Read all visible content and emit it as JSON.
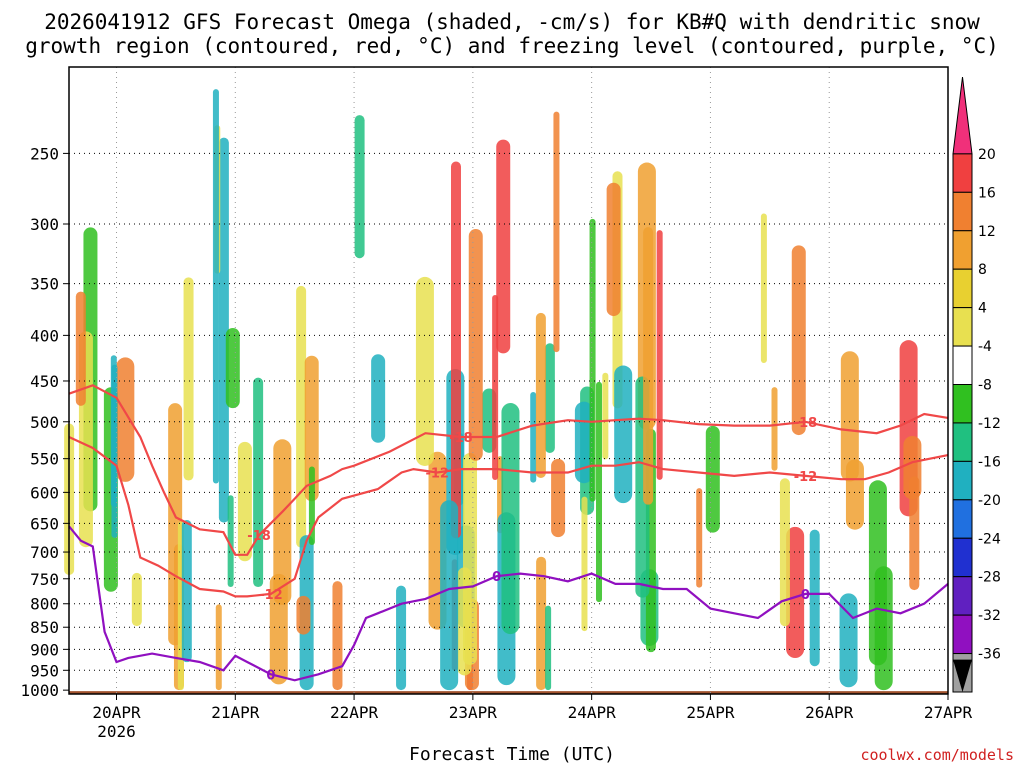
{
  "header": {
    "title_line1": "2026041912 GFS Forecast Omega (shaded, -cm/s) for KB#Q with dendritic snow",
    "title_line2": "growth region (contoured, red, °C) and freezing level (contoured, purple, °C)"
  },
  "footer": {
    "xlabel": "Forecast Time (UTC)",
    "credit": "coolwx.com/models"
  },
  "chart_data": {
    "type": "heatmap",
    "title": "2026041912 GFS Forecast Omega (shaded, -cm/s) for KB#Q with dendritic snow growth region (contoured, red, °C) and freezing level (contoured, purple, °C)",
    "xlabel": "Forecast Time (UTC)",
    "ylabel": "",
    "x_ticks": [
      "20APR",
      "21APR",
      "22APR",
      "23APR",
      "24APR",
      "25APR",
      "26APR",
      "27APR"
    ],
    "x_tick_sublabel": "2026",
    "y_ticks": [
      250,
      300,
      350,
      400,
      450,
      500,
      550,
      600,
      650,
      700,
      750,
      800,
      850,
      900,
      950,
      1000
    ],
    "y_range": [
      200,
      1010
    ],
    "y_scale": "log",
    "x_range_days": [
      -0.4,
      7.0
    ],
    "grid": true,
    "colorbar_labels": [
      20,
      16,
      12,
      8,
      4,
      -4,
      -8,
      -12,
      -16,
      -20,
      -24,
      -28,
      -32,
      -36
    ],
    "colorbar_colors": [
      "#f0307a",
      "#f04040",
      "#f08030",
      "#f0a030",
      "#e8d030",
      "#e8e050",
      "#ffffff",
      "#30c020",
      "#20c080",
      "#20b0c0",
      "#2070e0",
      "#2030d0",
      "#6020c0",
      "#9010c0",
      "#a0a0a0"
    ],
    "contour_labels": {
      "dgz_warm": "-12",
      "dgz_cold": "-18",
      "freezing": "0"
    },
    "series": [
      {
        "name": "-18",
        "x": [
          -0.4,
          -0.2,
          0.0,
          0.2,
          0.3,
          0.4,
          0.5,
          0.7,
          0.9,
          1.0,
          1.1,
          1.2,
          1.4,
          1.5,
          1.6,
          1.8,
          1.9,
          2.0,
          2.3,
          2.6,
          2.9,
          3.2,
          3.5,
          3.8,
          4.0,
          4.2,
          4.4,
          4.6,
          4.9,
          5.2,
          5.5,
          5.8,
          6.1,
          6.4,
          6.6,
          6.8,
          7.0
        ],
        "y": [
          465,
          455,
          470,
          520,
          560,
          600,
          640,
          660,
          665,
          705,
          705,
          670,
          630,
          610,
          590,
          575,
          565,
          560,
          540,
          515,
          520,
          520,
          505,
          498,
          500,
          498,
          496,
          498,
          503,
          505,
          505,
          500,
          510,
          515,
          505,
          490,
          495
        ]
      },
      {
        "name": "-12",
        "x": [
          -0.4,
          -0.2,
          0.0,
          0.1,
          0.2,
          0.35,
          0.5,
          0.7,
          0.9,
          1.0,
          1.1,
          1.3,
          1.5,
          1.6,
          1.7,
          1.9,
          2.0,
          2.2,
          2.4,
          2.5,
          2.7,
          2.9,
          3.2,
          3.5,
          3.8,
          4.0,
          4.2,
          4.4,
          4.6,
          4.9,
          5.2,
          5.5,
          5.8,
          6.1,
          6.3,
          6.5,
          6.7,
          7.0
        ],
        "y": [
          520,
          535,
          560,
          620,
          710,
          725,
          745,
          770,
          775,
          785,
          785,
          780,
          750,
          680,
          640,
          610,
          605,
          595,
          570,
          565,
          570,
          565,
          565,
          570,
          570,
          560,
          560,
          555,
          565,
          570,
          575,
          570,
          575,
          580,
          580,
          570,
          555,
          545
        ]
      },
      {
        "name": "0",
        "x": [
          -0.4,
          -0.3,
          -0.2,
          -0.1,
          0.0,
          0.1,
          0.3,
          0.5,
          0.7,
          0.9,
          1.0,
          1.1,
          1.3,
          1.5,
          1.7,
          1.9,
          2.0,
          2.1,
          2.2,
          2.4,
          2.6,
          2.8,
          3.0,
          3.2,
          3.4,
          3.6,
          3.8,
          4.0,
          4.2,
          4.4,
          4.6,
          4.8,
          5.0,
          5.2,
          5.4,
          5.6,
          5.8,
          6.0,
          6.2,
          6.4,
          6.6,
          6.8,
          7.0
        ],
        "y": [
          655,
          680,
          690,
          860,
          930,
          920,
          910,
          920,
          930,
          950,
          915,
          930,
          960,
          975,
          960,
          940,
          890,
          830,
          820,
          800,
          790,
          770,
          765,
          745,
          740,
          745,
          755,
          740,
          760,
          760,
          770,
          770,
          810,
          820,
          830,
          795,
          780,
          780,
          830,
          810,
          820,
          800,
          760
        ]
      }
    ]
  }
}
